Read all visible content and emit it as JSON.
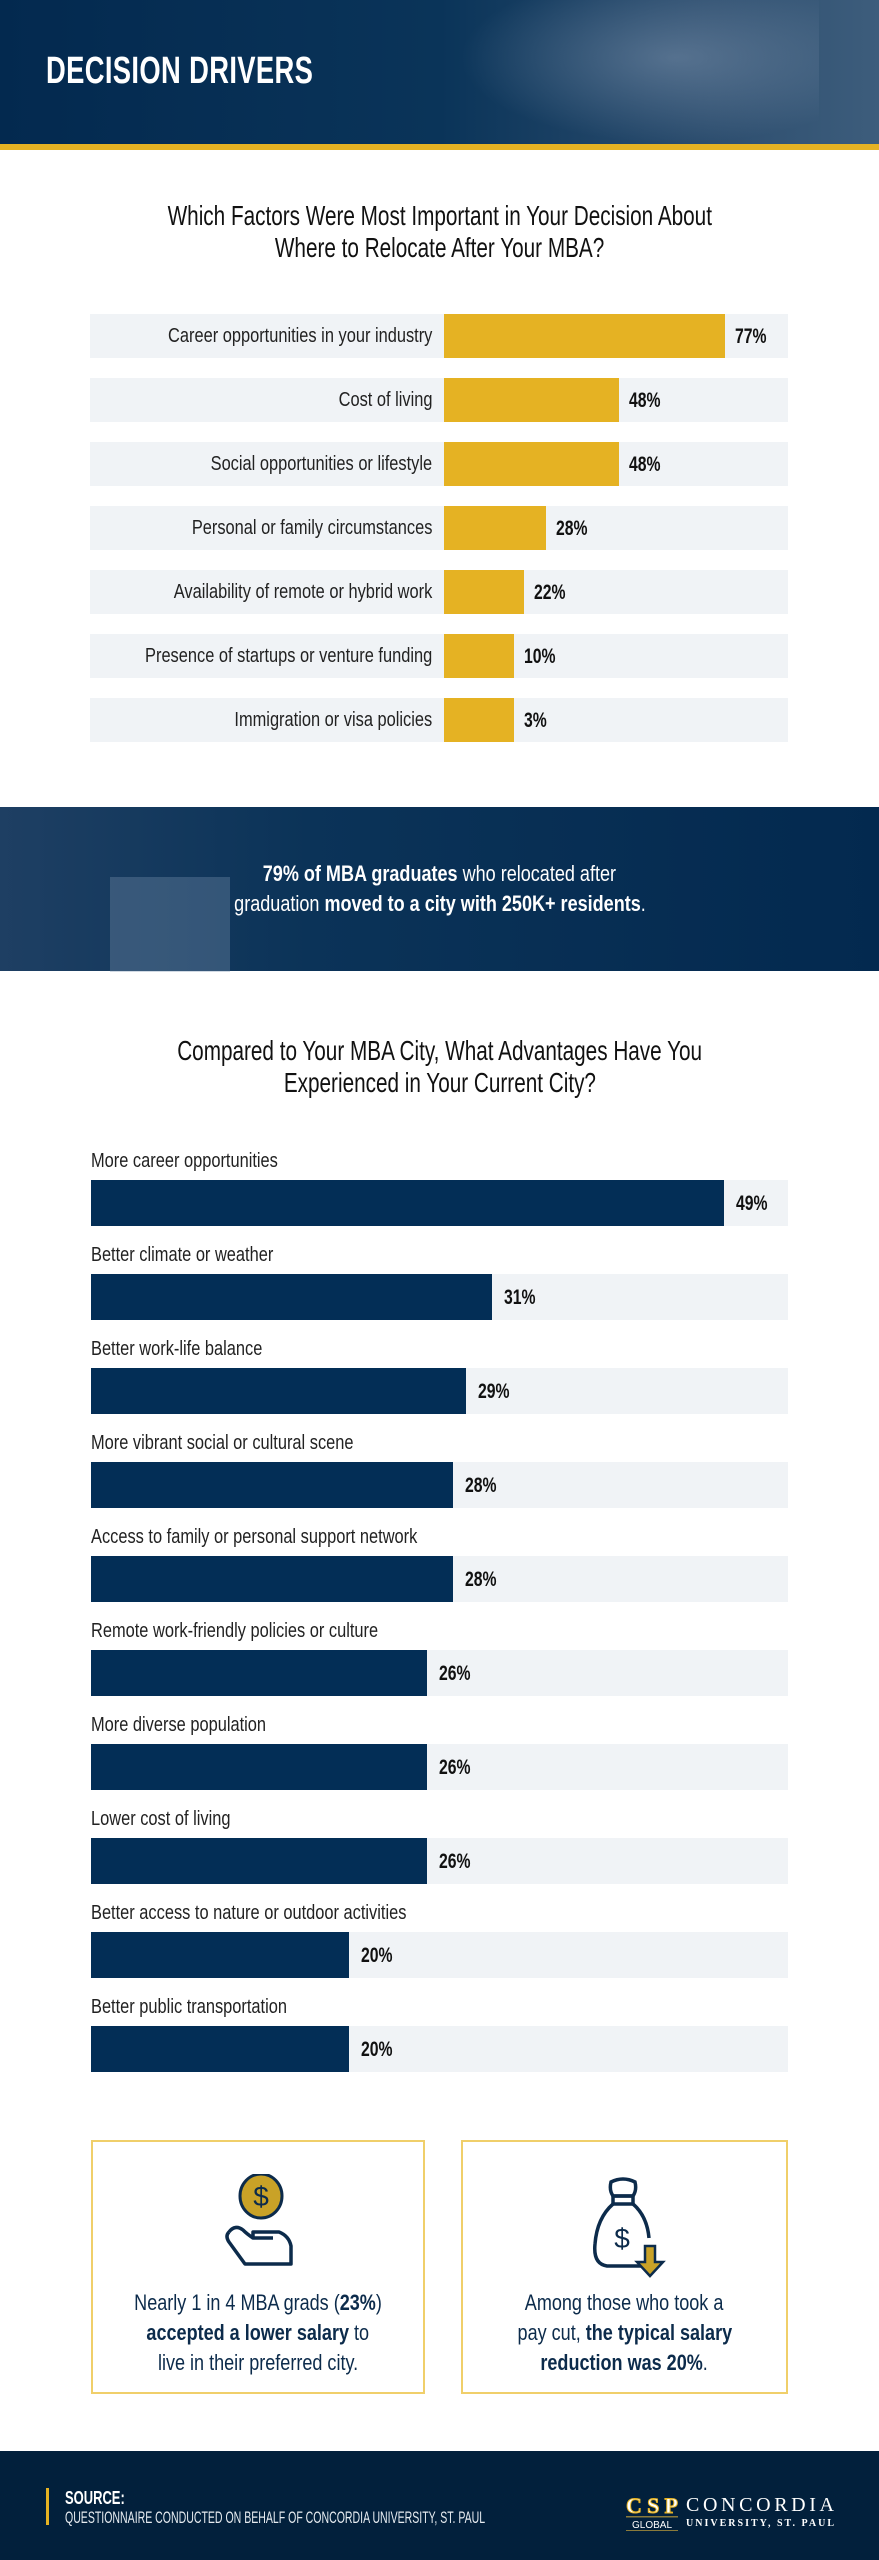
{
  "header": {
    "title": "DECISION DRIVERS"
  },
  "colors": {
    "navy": "#032e56",
    "gold": "#e5b223",
    "track": "#f0f3f6"
  },
  "chart_data": [
    {
      "type": "bar",
      "orientation": "horizontal",
      "title": "Which Factors Were Most Important in Your Decision About Where to Relocate After Your MBA?",
      "title_lines": [
        "Which Factors Were Most Important in Your Decision About",
        "Where to Relocate After Your MBA?"
      ],
      "categories": [
        "Career opportunities in your industry",
        "Cost of living",
        "Social opportunities or lifestyle",
        "Personal or family circumstances",
        "Availability of remote or hybrid work",
        "Presence of startups or venture funding",
        "Immigration or visa policies"
      ],
      "values": [
        77,
        48,
        48,
        28,
        22,
        10,
        3
      ],
      "labels": [
        "77%",
        "48%",
        "48%",
        "28%",
        "22%",
        "10%",
        "3%"
      ],
      "unit": "%",
      "color": "#e5b223"
    },
    {
      "type": "bar",
      "orientation": "horizontal",
      "title": "Compared to Your MBA City, What Advantages Have You Experienced in Your Current City?",
      "title_lines": [
        "Compared to Your MBA City, What Advantages Have You",
        "Experienced in Your Current City?"
      ],
      "categories": [
        "More career opportunities",
        "Better climate or weather",
        "Better work-life balance",
        "More vibrant social or cultural scene",
        "Access to family or personal support network",
        "Remote work-friendly policies or culture",
        "More diverse population",
        "Lower cost of living",
        "Better access to nature or outdoor activities",
        "Better public transportation"
      ],
      "values": [
        49,
        31,
        29,
        28,
        28,
        26,
        26,
        26,
        20,
        20
      ],
      "labels": [
        "49%",
        "31%",
        "29%",
        "28%",
        "28%",
        "26%",
        "26%",
        "26%",
        "20%",
        "20%"
      ],
      "unit": "%",
      "color": "#032e56"
    }
  ],
  "banner": {
    "bold1": "79% of MBA graduates",
    "text1": " who relocated after",
    "text2": "graduation ",
    "bold2": "moved to a city with 250K+ residents",
    "end": "."
  },
  "cards": [
    {
      "icon": "hand-coin-icon",
      "t1": "Nearly 1 in 4 MBA grads (",
      "b1": "23%",
      "t2": ")",
      "b2": "accepted a lower salary",
      "t3": " to",
      "t4": "live in their preferred city."
    },
    {
      "icon": "money-bag-down-icon",
      "t1": "Among those who took a",
      "t2": "pay cut, ",
      "b1": "the typical salary",
      "b2": "reduction was 20%",
      "t3": "."
    }
  ],
  "footer": {
    "source_label": "SOURCE:",
    "source_text": "QUESTIONNAIRE CONDUCTED ON BEHALF OF CONCORDIA UNIVERSITY, ST. PAUL",
    "logo": {
      "mark": "CSP",
      "sub": "GLOBAL",
      "name": "CONCORDIA",
      "tagline": "UNIVERSITY, ST. PAUL"
    }
  }
}
